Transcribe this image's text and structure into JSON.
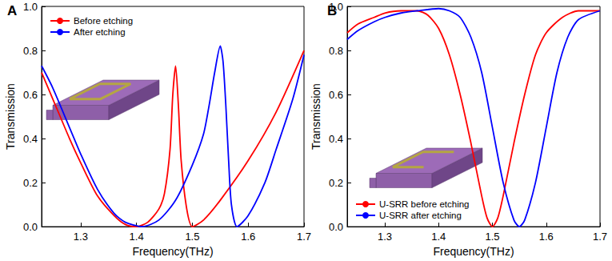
{
  "chart_data": [
    {
      "type": "line",
      "title": "A",
      "x_label": "Frequency(THz)",
      "y_label": "Transmission",
      "xlim": [
        1.23,
        1.7
      ],
      "xticks": [
        1.3,
        1.4,
        1.5,
        1.6,
        1.7
      ],
      "ylim": [
        0,
        1
      ],
      "yticks": [
        {
          "value": 0,
          "label": "0.0"
        },
        {
          "value": 0.2,
          "label": "0.2"
        },
        {
          "value": 0.4,
          "label": "0.4"
        },
        {
          "value": 0.6,
          "label": "0.6"
        },
        {
          "value": 0.8,
          "label": "0.8"
        },
        {
          "value": 1,
          "label": "1.0"
        }
      ],
      "grid": false,
      "legend": "upper left",
      "series": [
        {
          "name": "Before etching",
          "color": "#ff0000",
          "x": [
            1.23,
            1.25,
            1.28,
            1.3,
            1.33,
            1.36,
            1.38,
            1.4,
            1.42,
            1.44,
            1.45,
            1.46,
            1.465,
            1.47,
            1.475,
            1.48,
            1.49,
            1.5,
            1.52,
            1.55,
            1.6,
            1.65,
            1.7
          ],
          "values": [
            0.7,
            0.58,
            0.4,
            0.29,
            0.14,
            0.05,
            0.01,
            0.0,
            0.02,
            0.08,
            0.15,
            0.35,
            0.6,
            0.73,
            0.55,
            0.3,
            0.08,
            0.0,
            0.03,
            0.12,
            0.3,
            0.52,
            0.8
          ]
        },
        {
          "name": "After etching",
          "color": "#0000ff",
          "x": [
            1.23,
            1.25,
            1.28,
            1.3,
            1.33,
            1.36,
            1.38,
            1.41,
            1.44,
            1.47,
            1.5,
            1.52,
            1.53,
            1.54,
            1.55,
            1.555,
            1.56,
            1.565,
            1.57,
            1.58,
            1.6,
            1.63,
            1.65,
            1.68,
            1.7
          ],
          "values": [
            0.73,
            0.63,
            0.45,
            0.33,
            0.17,
            0.06,
            0.02,
            0.0,
            0.03,
            0.12,
            0.28,
            0.42,
            0.55,
            0.7,
            0.82,
            0.75,
            0.55,
            0.3,
            0.1,
            0.0,
            0.05,
            0.2,
            0.35,
            0.58,
            0.78
          ]
        }
      ]
    },
    {
      "type": "line",
      "title": "B",
      "x_label": "Frequency(THz)",
      "y_label": "Transmission",
      "xlim": [
        1.23,
        1.7
      ],
      "xticks": [
        1.3,
        1.4,
        1.5,
        1.6,
        1.7
      ],
      "ylim": [
        0,
        1
      ],
      "yticks": [
        {
          "value": 0,
          "label": "0.0"
        },
        {
          "value": 0.2,
          "label": "0.2"
        },
        {
          "value": 0.4,
          "label": "0.4"
        },
        {
          "value": 0.6,
          "label": "0.6"
        },
        {
          "value": 0.8,
          "label": "0.8"
        },
        {
          "value": 1,
          "label": "1.0"
        }
      ],
      "grid": false,
      "legend": "lower left",
      "series": [
        {
          "name": "U-SRR before etching",
          "color": "#ff0000",
          "x": [
            1.23,
            1.25,
            1.28,
            1.3,
            1.33,
            1.36,
            1.38,
            1.4,
            1.42,
            1.44,
            1.46,
            1.48,
            1.49,
            1.5,
            1.51,
            1.52,
            1.54,
            1.56,
            1.58,
            1.6,
            1.63,
            1.66,
            1.7
          ],
          "values": [
            0.88,
            0.92,
            0.95,
            0.97,
            0.98,
            0.98,
            0.96,
            0.9,
            0.78,
            0.6,
            0.38,
            0.14,
            0.04,
            0.0,
            0.04,
            0.14,
            0.38,
            0.6,
            0.78,
            0.88,
            0.95,
            0.98,
            0.98
          ]
        },
        {
          "name": "U-SRR after etching",
          "color": "#0000ff",
          "x": [
            1.23,
            1.25,
            1.28,
            1.3,
            1.33,
            1.36,
            1.4,
            1.42,
            1.44,
            1.46,
            1.48,
            1.5,
            1.52,
            1.54,
            1.55,
            1.56,
            1.58,
            1.6,
            1.62,
            1.64,
            1.66,
            1.7
          ],
          "values": [
            0.85,
            0.89,
            0.93,
            0.95,
            0.97,
            0.98,
            0.99,
            0.98,
            0.95,
            0.86,
            0.7,
            0.45,
            0.2,
            0.03,
            0.0,
            0.03,
            0.2,
            0.45,
            0.7,
            0.86,
            0.94,
            0.98
          ]
        }
      ]
    }
  ]
}
